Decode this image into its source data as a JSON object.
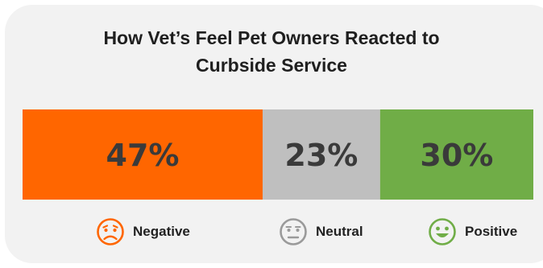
{
  "title_lines": [
    "How Vet’s Feel Pet Owners Reacted to",
    "Curbside Service"
  ],
  "colors": {
    "negative": "#ff6600",
    "neutral": "#bfbfbf",
    "positive": "#70ad47",
    "text": "#3a3a3a"
  },
  "icons": [
    "worried-face-icon",
    "neutral-face-icon",
    "smiling-face-icon"
  ],
  "chart_data": {
    "type": "bar",
    "stacked": true,
    "orientation": "horizontal",
    "unit": "%",
    "categories": [
      "Negative",
      "Neutral",
      "Positive"
    ],
    "values": [
      47,
      23,
      30
    ],
    "labels": [
      "47%",
      "23%",
      "30%"
    ],
    "legend": [
      "Negative",
      "Neutral",
      "Positive"
    ],
    "legend_position": "bottom"
  }
}
